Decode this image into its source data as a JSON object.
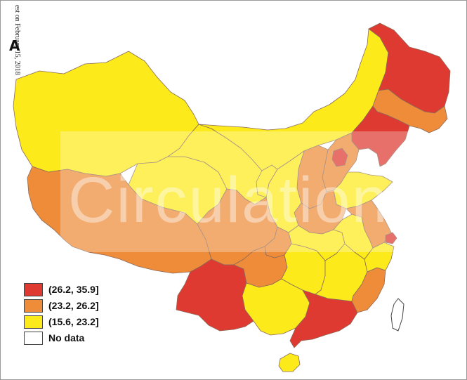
{
  "side_note": "est on February 15, 2018",
  "north_arrow": "A",
  "watermark": "Circulation",
  "legend": [
    {
      "label": "(26.2, 35.9]",
      "color": "#df3a31"
    },
    {
      "label": "(23.2, 26.2]",
      "color": "#ef8c3a"
    },
    {
      "label": "(15.6, 23.2]",
      "color": "#fcea1b"
    },
    {
      "label": "No data",
      "color": "#ffffff"
    }
  ],
  "colors": {
    "high": "#df3a31",
    "mid": "#ef8c3a",
    "low": "#fcea1b",
    "pale": "#f7e64f",
    "no_data": "#ffffff"
  },
  "regions": [
    {
      "id": "xinjiang",
      "class": "low"
    },
    {
      "id": "tibet",
      "class": "mid"
    },
    {
      "id": "qinghai",
      "class": "low"
    },
    {
      "id": "gansu",
      "class": "low"
    },
    {
      "id": "inner-mongolia",
      "class": "low"
    },
    {
      "id": "heilongjiang",
      "class": "high"
    },
    {
      "id": "jilin",
      "class": "mid"
    },
    {
      "id": "liaoning",
      "class": "high"
    },
    {
      "id": "beijing",
      "class": "high"
    },
    {
      "id": "hebei",
      "class": "mid"
    },
    {
      "id": "shanxi",
      "class": "mid"
    },
    {
      "id": "shandong",
      "class": "low"
    },
    {
      "id": "henan",
      "class": "mid"
    },
    {
      "id": "shaanxi",
      "class": "low"
    },
    {
      "id": "ningxia",
      "class": "low"
    },
    {
      "id": "sichuan",
      "class": "mid"
    },
    {
      "id": "chongqing",
      "class": "mid"
    },
    {
      "id": "yunnan",
      "class": "high"
    },
    {
      "id": "guizhou",
      "class": "mid"
    },
    {
      "id": "guangxi",
      "class": "low"
    },
    {
      "id": "guangdong",
      "class": "high"
    },
    {
      "id": "hainan",
      "class": "low"
    },
    {
      "id": "hunan",
      "class": "low"
    },
    {
      "id": "hubei",
      "class": "low"
    },
    {
      "id": "jiangxi",
      "class": "low"
    },
    {
      "id": "fujian",
      "class": "mid"
    },
    {
      "id": "zhejiang",
      "class": "low"
    },
    {
      "id": "jiangsu",
      "class": "mid"
    },
    {
      "id": "anhui",
      "class": "low"
    },
    {
      "id": "shanghai",
      "class": "high"
    },
    {
      "id": "taiwan",
      "class": "no_data"
    }
  ]
}
